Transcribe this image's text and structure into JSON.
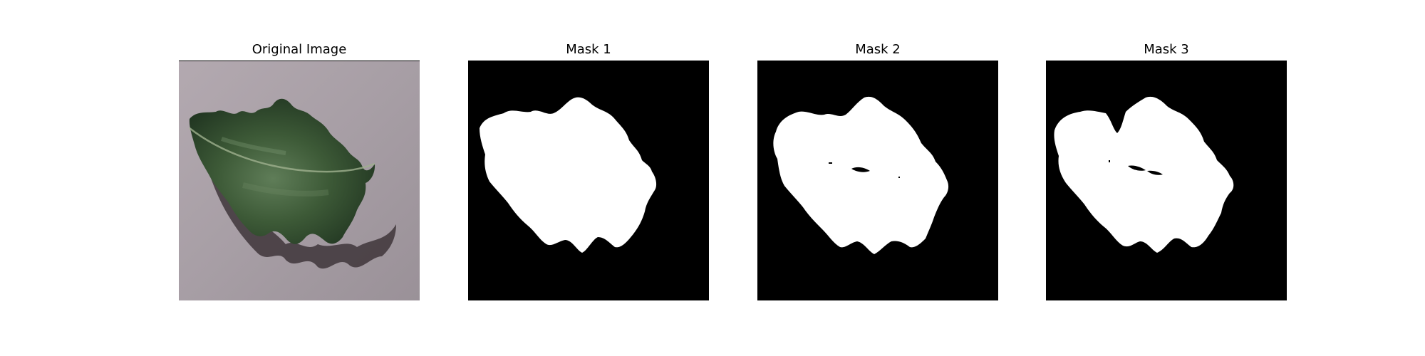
{
  "figure": {
    "panels": [
      {
        "title": "Original Image",
        "kind": "photo",
        "subject": "green-leaf-on-gray-surface"
      },
      {
        "title": "Mask 1",
        "kind": "mask",
        "subject": "leaf-segmentation-mask"
      },
      {
        "title": "Mask 2",
        "kind": "mask",
        "subject": "leaf-segmentation-mask"
      },
      {
        "title": "Mask 3",
        "kind": "mask",
        "subject": "leaf-segmentation-mask"
      }
    ],
    "colors": {
      "background": "#ffffff",
      "mask_foreground": "#ffffff",
      "mask_background": "#000000",
      "surface": "#a69ea4",
      "leaf": "#2f4a2c",
      "leaf_highlight": "#6f8a66",
      "shadow": "#3a3337"
    }
  }
}
